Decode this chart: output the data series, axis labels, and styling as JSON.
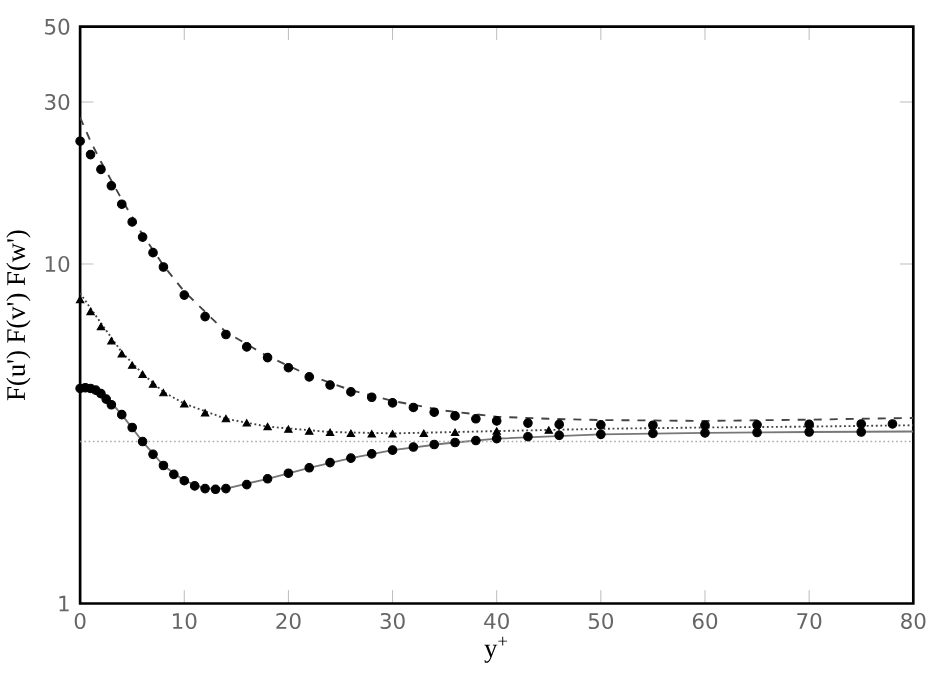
{
  "chart_data": {
    "type": "line",
    "xlabel": "y$^{+}$",
    "ylabel": "F(u') F(v') F(w')",
    "xlim": [
      0,
      80
    ],
    "ylim": [
      1,
      50
    ],
    "log": "y",
    "xticks": [
      0,
      10,
      20,
      30,
      40,
      50,
      60,
      70,
      80
    ],
    "yticks": [
      1,
      10,
      30,
      50
    ],
    "series": [
      {
        "color": "#444444",
        "line_style": "dashed",
        "x": [
          0,
          1,
          2,
          4,
          6,
          8,
          10,
          14,
          18,
          22,
          26,
          30,
          35,
          40,
          45,
          50,
          60,
          70,
          80
        ],
        "values": [
          27,
          23,
          20,
          15.5,
          12.2,
          9.9,
          8.3,
          6.3,
          5.35,
          4.7,
          4.25,
          3.95,
          3.7,
          3.55,
          3.5,
          3.47,
          3.45,
          3.48,
          3.52
        ]
      },
      {
        "type": "scatter",
        "color": "#000000",
        "marker": "circle",
        "x": [
          0,
          1,
          2,
          3,
          4,
          5,
          6,
          7,
          8,
          10,
          12,
          14,
          16,
          18,
          20,
          22,
          24,
          26,
          28,
          30,
          32,
          34,
          36,
          38,
          40,
          43,
          46,
          50,
          55,
          60,
          65,
          70,
          75,
          78
        ],
        "values": [
          23,
          21,
          19,
          17,
          15,
          13.3,
          12,
          10.8,
          9.8,
          8.1,
          7.0,
          6.2,
          5.7,
          5.3,
          4.95,
          4.65,
          4.4,
          4.2,
          4.05,
          3.9,
          3.78,
          3.66,
          3.57,
          3.5,
          3.45,
          3.4,
          3.37,
          3.36,
          3.35,
          3.35,
          3.36,
          3.37,
          3.38,
          3.38
        ]
      },
      {
        "color": "#444444",
        "line_style": "dotted",
        "x": [
          0,
          2,
          4,
          6,
          8,
          10,
          14,
          18,
          24,
          30,
          40,
          50,
          60,
          70,
          80
        ],
        "values": [
          8.2,
          6.7,
          5.5,
          4.75,
          4.2,
          3.88,
          3.5,
          3.32,
          3.2,
          3.17,
          3.22,
          3.27,
          3.3,
          3.32,
          3.35
        ]
      },
      {
        "type": "scatter",
        "color": "#000000",
        "marker": "triangle",
        "x": [
          0,
          1,
          2,
          3,
          4,
          5,
          6,
          7,
          8,
          10,
          12,
          14,
          16,
          18,
          20,
          22,
          24,
          26,
          28,
          30,
          33,
          36,
          40,
          45
        ],
        "values": [
          7.8,
          7.2,
          6.5,
          5.9,
          5.4,
          5.0,
          4.7,
          4.4,
          4.15,
          3.85,
          3.62,
          3.48,
          3.38,
          3.3,
          3.24,
          3.2,
          3.17,
          3.15,
          3.14,
          3.14,
          3.15,
          3.17,
          3.2,
          3.22
        ]
      },
      {
        "color": "#777777",
        "line_style": "solid",
        "x": [
          0,
          1,
          2,
          3,
          4,
          6,
          8,
          10,
          12,
          14,
          18,
          22,
          26,
          30,
          35,
          40,
          50,
          60,
          70,
          80
        ],
        "values": [
          4.4,
          4.38,
          4.2,
          3.9,
          3.6,
          3.0,
          2.55,
          2.3,
          2.18,
          2.18,
          2.33,
          2.51,
          2.68,
          2.83,
          2.96,
          3.06,
          3.15,
          3.18,
          3.2,
          3.21
        ]
      },
      {
        "type": "scatter",
        "color": "#000000",
        "marker": "circle",
        "x": [
          0,
          0.5,
          1,
          1.5,
          2,
          2.5,
          3,
          4,
          5,
          6,
          7,
          8,
          9,
          10,
          11,
          12,
          13,
          14,
          16,
          18,
          20,
          22,
          24,
          26,
          28,
          30,
          32,
          34,
          36,
          38,
          40,
          43,
          46,
          50,
          55,
          60,
          65,
          70,
          75
        ],
        "values": [
          4.3,
          4.32,
          4.3,
          4.25,
          4.15,
          4.0,
          3.85,
          3.6,
          3.3,
          3.0,
          2.75,
          2.55,
          2.4,
          2.3,
          2.22,
          2.18,
          2.17,
          2.18,
          2.24,
          2.33,
          2.42,
          2.51,
          2.6,
          2.68,
          2.76,
          2.83,
          2.89,
          2.94,
          2.98,
          3.02,
          3.06,
          3.1,
          3.13,
          3.15,
          3.17,
          3.18,
          3.19,
          3.2,
          3.2
        ]
      }
    ],
    "ref_lines": [
      {
        "axis": "y",
        "value": 3,
        "color": "#aaaaaa",
        "line_style": "dotted"
      }
    ]
  }
}
